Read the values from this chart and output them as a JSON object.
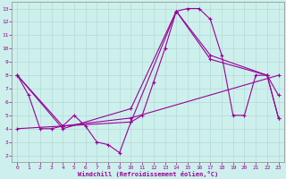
{
  "xlabel": "Windchill (Refroidissement éolien,°C)",
  "background_color": "#cdf0ec",
  "grid_color": "#b8ddd9",
  "line_color": "#990099",
  "xlim": [
    -0.5,
    23.5
  ],
  "ylim": [
    1.5,
    13.5
  ],
  "xticks": [
    0,
    1,
    2,
    3,
    4,
    5,
    6,
    7,
    8,
    9,
    10,
    11,
    12,
    13,
    14,
    15,
    16,
    17,
    18,
    19,
    20,
    21,
    22,
    23
  ],
  "yticks": [
    2,
    3,
    4,
    5,
    6,
    7,
    8,
    9,
    10,
    11,
    12,
    13
  ],
  "series1_x": [
    0,
    1,
    2,
    3,
    4,
    5,
    6,
    7,
    8,
    9,
    10,
    11,
    12,
    13,
    14,
    15,
    16,
    17,
    18,
    19,
    20,
    21,
    22,
    23
  ],
  "series1_y": [
    8.0,
    6.5,
    4.0,
    4.0,
    4.2,
    5.0,
    4.2,
    3.0,
    2.8,
    2.2,
    4.5,
    5.0,
    7.5,
    10.0,
    12.8,
    13.0,
    13.0,
    12.2,
    9.5,
    5.0,
    5.0,
    8.0,
    8.0,
    6.5
  ],
  "series2_x": [
    0,
    4,
    10,
    14,
    17,
    22,
    23
  ],
  "series2_y": [
    8.0,
    4.2,
    4.5,
    12.8,
    9.2,
    8.0,
    4.8
  ],
  "series3_x": [
    0,
    4,
    10,
    14,
    17,
    22,
    23
  ],
  "series3_y": [
    8.0,
    4.0,
    5.5,
    12.8,
    9.5,
    8.0,
    4.8
  ],
  "series4_x": [
    0,
    4,
    10,
    23
  ],
  "series4_y": [
    4.0,
    4.2,
    4.8,
    8.0
  ]
}
